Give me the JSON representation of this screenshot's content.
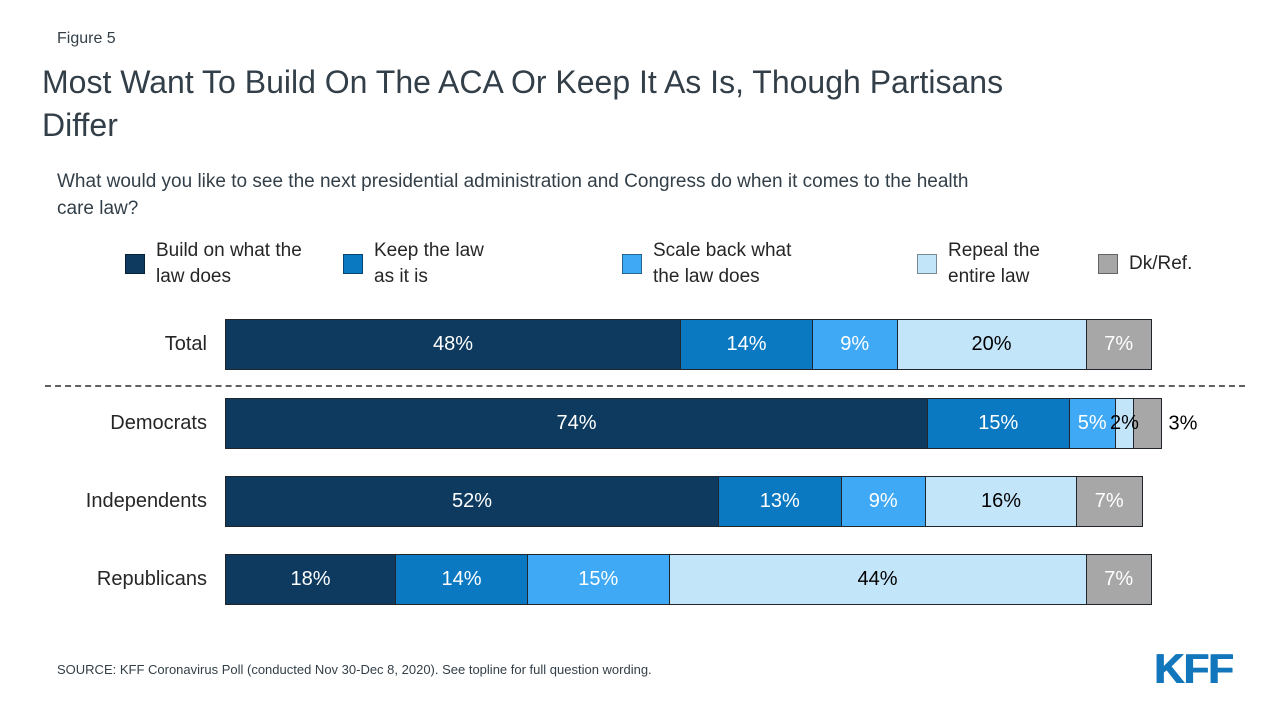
{
  "figure_label": "Figure 5",
  "title": "Most Want To Build On The ACA Or Keep It As Is, Though Partisans\nDiffer",
  "subtitle": "What would you like to see the next presidential administration and Congress do when it comes to the health\ncare law?",
  "legend": {
    "items": [
      {
        "label": "Build on what the\nlaw does"
      },
      {
        "label": "Keep the law\nas it is"
      },
      {
        "label": "Scale back what\nthe law does"
      },
      {
        "label": "Repeal the\nentire law"
      },
      {
        "label": "Dk/Ref."
      }
    ]
  },
  "chart_data": {
    "type": "bar",
    "variant": "horizontal-stacked",
    "unit": "%",
    "xlim": [
      0,
      100
    ],
    "categories": [
      "Total",
      "Democrats",
      "Independents",
      "Republicans"
    ],
    "series": [
      {
        "name": "Build on what the law does",
        "color": "#0D3A5E",
        "label_color": "#FFFFFF",
        "values": [
          48,
          74,
          52,
          18
        ]
      },
      {
        "name": "Keep the law as it is",
        "color": "#0B78C2",
        "label_color": "#FFFFFF",
        "values": [
          14,
          15,
          13,
          14
        ]
      },
      {
        "name": "Scale back what the law does",
        "color": "#3FA9F5",
        "label_color": "#FFFFFF",
        "values": [
          9,
          5,
          9,
          15
        ]
      },
      {
        "name": "Repeal the entire law",
        "color": "#C3E5FA",
        "label_color": "#000000",
        "values": [
          20,
          2,
          16,
          44
        ]
      },
      {
        "name": "Dk/Ref.",
        "color": "#A7A7A7",
        "label_color": "#FFFFFF",
        "values": [
          7,
          3,
          7,
          7
        ]
      }
    ],
    "separator_after_category": "Total",
    "label_overrides": [
      {
        "category": "Democrats",
        "series": "Dk/Ref.",
        "placement": "outside",
        "color": "#000000"
      }
    ],
    "legend_position": "top",
    "grid": false
  },
  "source": "SOURCE: KFF Coronavirus Poll (conducted Nov 30-Dec 8, 2020). See topline for full question wording.",
  "logo_text": "KFF",
  "colors": {
    "accent_blue": "#1276BC",
    "text_dark": "#333F48"
  }
}
